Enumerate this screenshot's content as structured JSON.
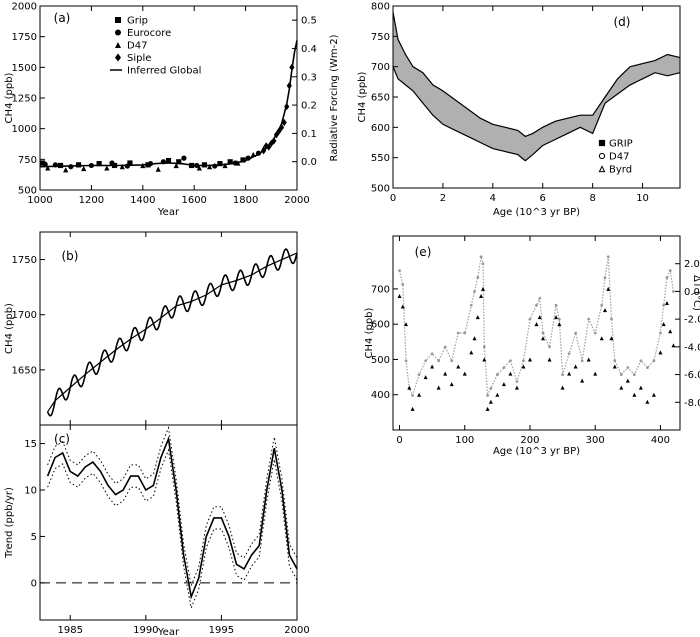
{
  "chart_data": [
    {
      "id": "a",
      "type": "scatter",
      "panel_label": "(a)",
      "xlabel": "Year",
      "ylabel": "CH4 (ppb)",
      "ylabel_right": "Radiative Forcing (Wm-2)",
      "xlim": [
        1000,
        2000
      ],
      "ylim": [
        500,
        2000
      ],
      "ylim_right": [
        -0.1,
        0.55
      ],
      "xticks": [
        1000,
        1200,
        1400,
        1600,
        1800,
        2000
      ],
      "yticks": [
        500,
        750,
        1000,
        1250,
        1500,
        1750,
        2000
      ],
      "yticks_right": [
        0.0,
        0.1,
        0.2,
        0.3,
        0.4,
        0.5
      ],
      "legend": [
        "Grip",
        "Eurocore",
        "D47",
        "Siple",
        "Inferred Global"
      ],
      "legend_position": "top-left",
      "series": [
        {
          "name": "Grip",
          "marker": "square",
          "x": [
            1010,
            1080,
            1150,
            1230,
            1290,
            1350,
            1420,
            1500,
            1540,
            1590,
            1640,
            1700,
            1740,
            1790
          ],
          "y": [
            720,
            700,
            705,
            715,
            700,
            720,
            705,
            740,
            730,
            700,
            705,
            715,
            730,
            745
          ]
        },
        {
          "name": "Eurocore",
          "marker": "circle",
          "x": [
            1020,
            1060,
            1120,
            1200,
            1280,
            1340,
            1430,
            1480,
            1560,
            1610,
            1680,
            1760,
            1810,
            1850
          ],
          "y": [
            710,
            705,
            690,
            700,
            720,
            695,
            715,
            730,
            760,
            700,
            695,
            720,
            760,
            800
          ]
        },
        {
          "name": "D47",
          "marker": "triangle",
          "x": [
            1030,
            1100,
            1170,
            1260,
            1320,
            1400,
            1460,
            1530,
            1620,
            1660,
            1720,
            1770,
            1830,
            1870
          ],
          "y": [
            680,
            665,
            675,
            680,
            690,
            700,
            670,
            700,
            680,
            690,
            700,
            720,
            790,
            840
          ]
        },
        {
          "name": "Siple",
          "marker": "diamond",
          "x": [
            1870,
            1880,
            1890,
            1900,
            1910,
            1920,
            1930,
            1940,
            1950,
            1960,
            1970,
            1980
          ],
          "y": [
            820,
            860,
            850,
            880,
            900,
            950,
            980,
            1010,
            1050,
            1180,
            1350,
            1500
          ]
        },
        {
          "name": "Inferred Global",
          "marker": "line",
          "x": [
            1000,
            1100,
            1200,
            1300,
            1400,
            1450,
            1500,
            1550,
            1600,
            1650,
            1700,
            1750,
            1800,
            1850,
            1880,
            1900,
            1920,
            1940,
            1960,
            1970,
            1980,
            1990,
            2000
          ],
          "y": [
            690,
            695,
            700,
            700,
            705,
            715,
            720,
            715,
            700,
            700,
            705,
            715,
            740,
            790,
            840,
            890,
            950,
            1040,
            1200,
            1320,
            1480,
            1620,
            1720
          ]
        }
      ]
    },
    {
      "id": "b",
      "type": "line",
      "panel_label": "(b)",
      "ylabel": "CH4 (ppb)",
      "xlim": [
        1983,
        2000
      ],
      "ylim": [
        1600,
        1775
      ],
      "yticks": [
        1650,
        1700,
        1750
      ],
      "series": [
        {
          "name": "",
          "x": [
            1983.5,
            1984,
            1985,
            1986,
            1987,
            1988,
            1989,
            1990,
            1991,
            1992,
            1993,
            1994,
            1995,
            1996,
            1997,
            1998,
            1999,
            2000
          ],
          "y": [
            1612,
            1622,
            1634,
            1646,
            1657,
            1668,
            1678,
            1687,
            1697,
            1708,
            1712,
            1718,
            1727,
            1731,
            1736,
            1744,
            1750,
            1756
          ],
          "seasonal_amplitude": 8
        }
      ]
    },
    {
      "id": "c",
      "type": "line",
      "panel_label": "(c)",
      "xlabel": "Year",
      "ylabel": "Trend (ppb/yr)",
      "xlim": [
        1983,
        2000
      ],
      "ylim": [
        -4,
        17
      ],
      "xticks": [
        1985,
        1990,
        1995,
        2000
      ],
      "yticks": [
        0,
        5,
        10,
        15
      ],
      "series": [
        {
          "name": "",
          "x": [
            1983.5,
            1984,
            1984.5,
            1985,
            1985.5,
            1986,
            1986.5,
            1987,
            1987.5,
            1988,
            1988.5,
            1989,
            1989.5,
            1990,
            1990.5,
            1991,
            1991.5,
            1992,
            1992.5,
            1993,
            1993.5,
            1994,
            1994.5,
            1995,
            1995.5,
            1996,
            1996.5,
            1997,
            1997.5,
            1998,
            1998.5,
            1999,
            1999.5,
            2000
          ],
          "y": [
            11.5,
            13.5,
            14,
            12,
            11.5,
            12.5,
            13,
            12,
            10.5,
            9.5,
            10,
            11.5,
            11.5,
            10,
            10.5,
            13.5,
            15.5,
            10,
            3,
            -1.5,
            0.5,
            5,
            7,
            7,
            5,
            2,
            1.5,
            3,
            4,
            10,
            14.5,
            10,
            3,
            1.5
          ]
        }
      ],
      "zero_line": true
    },
    {
      "id": "d",
      "type": "line",
      "panel_label": "(d)",
      "xlabel": "Age (10^3 yr BP)",
      "ylabel": "CH4 (ppb)",
      "xlim": [
        0,
        11.5
      ],
      "ylim": [
        500,
        800
      ],
      "xticks": [
        0,
        2,
        4,
        6,
        8,
        10
      ],
      "yticks": [
        500,
        550,
        600,
        650,
        700,
        750,
        800
      ],
      "legend": [
        "GRIP",
        "D47",
        "Byrd"
      ],
      "legend_position": "right",
      "series": [
        {
          "name": "GRIP",
          "x": [
            0,
            0.2,
            0.5,
            0.8,
            1.2,
            1.6,
            2,
            2.5,
            3,
            3.5,
            4,
            4.5,
            5,
            5.3,
            5.6,
            6,
            6.5,
            7,
            7.5,
            8,
            8.5,
            9,
            9.5,
            10,
            10.5,
            11,
            11.5
          ],
          "y": [
            790,
            745,
            720,
            700,
            690,
            670,
            660,
            645,
            630,
            615,
            605,
            600,
            595,
            585,
            590,
            600,
            610,
            615,
            620,
            620,
            650,
            680,
            700,
            705,
            710,
            720,
            715
          ]
        },
        {
          "name": "D47",
          "x": [
            0,
            0.2,
            0.5,
            0.8,
            1.2,
            1.6,
            2,
            2.5,
            3,
            3.5,
            4,
            4.5,
            5,
            5.3,
            5.6,
            6,
            6.5,
            7,
            7.5,
            8,
            8.5,
            9,
            9.5,
            10,
            10.5,
            11,
            11.5
          ],
          "y": [
            700,
            680,
            670,
            660,
            640,
            620,
            605,
            595,
            585,
            575,
            565,
            560,
            555,
            545,
            555,
            570,
            580,
            590,
            600,
            590,
            640,
            655,
            670,
            680,
            690,
            685,
            690
          ]
        }
      ]
    },
    {
      "id": "e",
      "type": "scatter",
      "panel_label": "(e)",
      "xlabel": "Age (10^3 yr BP)",
      "ylabel": "CH4 (ppb)",
      "ylabel_right": "ΔT (°C)",
      "xlim": [
        -10,
        430
      ],
      "ylim": [
        300,
        850
      ],
      "ylim_right": [
        -10,
        4
      ],
      "xticks": [
        0,
        100,
        200,
        300,
        400
      ],
      "yticks": [
        400,
        500,
        600,
        700
      ],
      "yticks_right": [
        2.0,
        0.0,
        -2.0,
        -4.0,
        -6.0,
        -8.0
      ],
      "series": [
        {
          "name": "CH4",
          "marker": "triangle",
          "x": [
            0,
            5,
            10,
            15,
            20,
            30,
            40,
            50,
            60,
            70,
            80,
            90,
            100,
            110,
            115,
            120,
            125,
            128,
            130,
            135,
            140,
            150,
            160,
            170,
            180,
            190,
            200,
            210,
            215,
            220,
            230,
            240,
            245,
            250,
            260,
            270,
            280,
            290,
            300,
            310,
            315,
            320,
            325,
            330,
            340,
            350,
            360,
            370,
            380,
            390,
            400,
            405,
            410,
            415,
            420
          ],
          "y": [
            680,
            650,
            600,
            420,
            360,
            400,
            450,
            480,
            420,
            460,
            430,
            480,
            460,
            520,
            560,
            620,
            680,
            700,
            500,
            360,
            380,
            400,
            430,
            460,
            420,
            480,
            500,
            600,
            620,
            560,
            500,
            620,
            600,
            420,
            460,
            480,
            440,
            500,
            460,
            560,
            640,
            700,
            560,
            480,
            420,
            440,
            400,
            420,
            380,
            400,
            520,
            600,
            660,
            580,
            540
          ]
        },
        {
          "name": "ΔT",
          "marker": "dot",
          "x": [
            0,
            5,
            10,
            15,
            20,
            30,
            40,
            50,
            60,
            70,
            80,
            90,
            100,
            110,
            115,
            120,
            125,
            128,
            130,
            135,
            140,
            150,
            160,
            170,
            180,
            190,
            200,
            210,
            215,
            220,
            230,
            240,
            245,
            250,
            260,
            270,
            280,
            290,
            300,
            310,
            315,
            320,
            325,
            330,
            340,
            350,
            360,
            370,
            380,
            390,
            400,
            405,
            410,
            415,
            420
          ],
          "y": [
            1.5,
            0.5,
            -5,
            -7,
            -7.5,
            -6,
            -5,
            -4.5,
            -5,
            -4,
            -5,
            -3,
            -3,
            -1,
            0,
            1,
            2.5,
            2,
            -4,
            -7.5,
            -7,
            -6,
            -5.5,
            -5,
            -6.5,
            -5,
            -2,
            -1,
            -0.5,
            -3,
            -4,
            -1,
            -2,
            -6,
            -4.5,
            -3,
            -5,
            -2,
            -3,
            -1,
            1,
            2.5,
            -2,
            -5,
            -6,
            -5.5,
            -6,
            -5,
            -5.5,
            -5,
            -3,
            -1,
            1,
            1.5,
            0
          ]
        }
      ]
    }
  ]
}
